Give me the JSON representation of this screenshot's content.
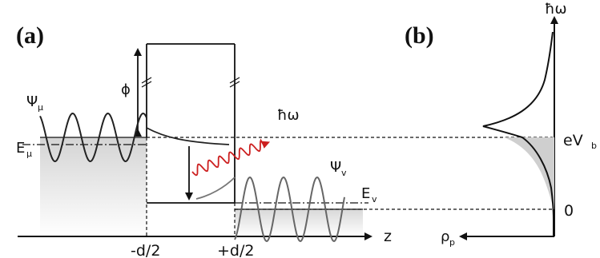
{
  "panels": {
    "a_label": "(a)",
    "b_label": "(b)"
  },
  "labels": {
    "psi_mu": "Ψ",
    "psi_mu_sub": "μ",
    "psi_nu": "Ψ",
    "psi_nu_sub": "v",
    "e_mu": "E",
    "e_mu_sub": "μ",
    "e_nu": "E",
    "e_nu_sub": "v",
    "phi": "ϕ",
    "photon_a": "ħω",
    "photon_b_axis": "ħω",
    "z_axis": "z",
    "rho": "ρ",
    "rho_sub": "p",
    "minus_d2": "-d/2",
    "plus_d2": "+d/2",
    "ev_b": "eV",
    "ev_b_sub": "b",
    "zero": "0"
  },
  "colors": {
    "line": "#111111",
    "photon": "#cc1f1f",
    "fill_light": "#e6e6e6",
    "fill_dark": "#cfcfcf",
    "wave_right": "#666666"
  }
}
